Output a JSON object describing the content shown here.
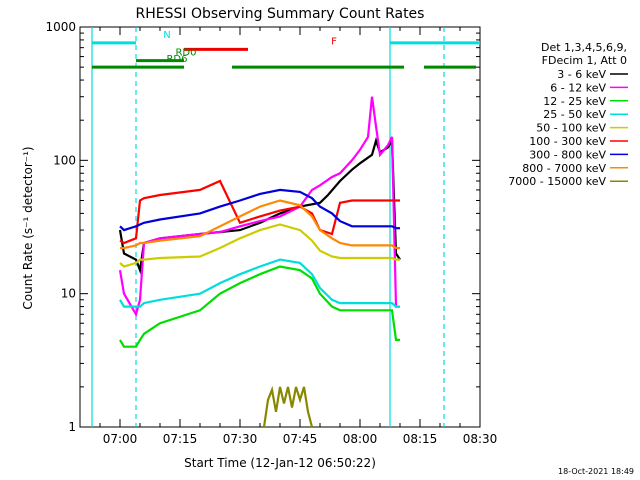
{
  "chart_data": {
    "type": "line",
    "title": "RHESSI Observing Summary Count Rates",
    "xlabel": "Start Time (12-Jan-12 06:50:22)",
    "ylabel": "Count Rate (s⁻¹ detector⁻¹)",
    "ylog": true,
    "ylim": [
      1,
      1000
    ],
    "xlim_min": [
      410,
      510
    ],
    "x_ticks": [
      {
        "label": "07:00",
        "min": 420
      },
      {
        "label": "07:15",
        "min": 435
      },
      {
        "label": "07:30",
        "min": 450
      },
      {
        "label": "07:45",
        "min": 465
      },
      {
        "label": "08:00",
        "min": 480
      },
      {
        "label": "08:15",
        "min": 495
      },
      {
        "label": "08:30",
        "min": 510
      }
    ],
    "y_ticks": [
      {
        "label": "1",
        "value": 1
      },
      {
        "label": "10",
        "value": 10
      },
      {
        "label": "100",
        "value": 100
      },
      {
        "label": "1000",
        "value": 1000
      }
    ],
    "legend_header": [
      "Det 1,3,4,5,6,9,",
      "FDecim 1, Att 0"
    ],
    "legend_position": "right",
    "series": [
      {
        "name": "3 - 6 keV",
        "color": "#000000",
        "x": [
          420,
          421,
          424,
          425,
          426,
          430,
          440,
          445,
          450,
          455,
          460,
          465,
          470,
          472,
          475,
          478,
          480,
          483,
          484,
          485,
          487,
          488,
          489,
          490
        ],
        "y": [
          30,
          20,
          18,
          15,
          24,
          26,
          28,
          29,
          30,
          34,
          40,
          45,
          48,
          55,
          70,
          85,
          95,
          110,
          140,
          115,
          125,
          140,
          20,
          18
        ]
      },
      {
        "name": "6 - 12 keV",
        "color": "#ff00ff",
        "x": [
          420,
          421,
          424,
          425,
          426,
          430,
          440,
          445,
          450,
          455,
          460,
          465,
          468,
          470,
          473,
          475,
          478,
          480,
          482,
          483,
          484,
          485,
          487,
          488,
          489,
          490
        ],
        "y": [
          15,
          10,
          7,
          9,
          24,
          26,
          28,
          29,
          32,
          35,
          38,
          45,
          60,
          65,
          75,
          80,
          100,
          120,
          150,
          300,
          180,
          110,
          130,
          150,
          8,
          8
        ]
      },
      {
        "name": "12 - 25 keV",
        "color": "#00dd00",
        "x": [
          420,
          421,
          424,
          425,
          426,
          430,
          440,
          445,
          450,
          455,
          460,
          465,
          468,
          470,
          473,
          475,
          478,
          480,
          488,
          489,
          490
        ],
        "y": [
          4.5,
          4,
          4,
          4.5,
          5,
          6,
          7.5,
          10,
          12,
          14,
          16,
          15,
          13,
          10,
          8,
          7.5,
          7.5,
          7.5,
          7.5,
          4.5,
          4.5
        ]
      },
      {
        "name": "25 - 50 keV",
        "color": "#00dddd",
        "x": [
          420,
          421,
          424,
          425,
          426,
          430,
          440,
          445,
          450,
          455,
          460,
          465,
          468,
          470,
          473,
          475,
          478,
          480,
          488,
          489,
          490
        ],
        "y": [
          9,
          8,
          8,
          8,
          8.5,
          9,
          10,
          12,
          14,
          16,
          18,
          17,
          14,
          11,
          9,
          8.5,
          8.5,
          8.5,
          8.5,
          8,
          8
        ]
      },
      {
        "name": "50 - 100 keV",
        "color": "#cccc00",
        "x": [
          420,
          421,
          424,
          425,
          426,
          430,
          440,
          445,
          450,
          455,
          460,
          465,
          468,
          470,
          473,
          475,
          478,
          480,
          488,
          489,
          490
        ],
        "y": [
          17,
          16,
          17,
          18,
          18,
          18.5,
          19,
          22,
          26,
          30,
          33,
          30,
          25,
          21,
          19,
          18.5,
          18.5,
          18.5,
          18.5,
          18,
          18
        ]
      },
      {
        "name": "100 - 300 keV",
        "color": "#ff0000",
        "x": [
          420,
          421,
          424,
          425,
          426,
          430,
          440,
          445,
          450,
          455,
          460,
          465,
          468,
          470,
          473,
          475,
          478,
          480,
          488,
          489,
          490
        ],
        "y": [
          25,
          24,
          26,
          50,
          52,
          55,
          60,
          70,
          34,
          38,
          42,
          45,
          40,
          30,
          28,
          48,
          50,
          50,
          50,
          50,
          50
        ]
      },
      {
        "name": "300 - 800 keV",
        "color": "#0000dd",
        "x": [
          420,
          421,
          424,
          425,
          426,
          430,
          440,
          445,
          450,
          455,
          460,
          465,
          468,
          470,
          473,
          475,
          478,
          480,
          488,
          489,
          490
        ],
        "y": [
          32,
          30,
          32,
          33,
          34,
          36,
          40,
          45,
          50,
          56,
          60,
          58,
          52,
          45,
          40,
          35,
          32,
          32,
          32,
          31,
          31
        ]
      },
      {
        "name": "800 - 7000 keV",
        "color": "#ff8800",
        "x": [
          420,
          421,
          424,
          425,
          426,
          430,
          440,
          445,
          450,
          455,
          460,
          465,
          468,
          470,
          473,
          475,
          478,
          480,
          488,
          489,
          490
        ],
        "y": [
          22,
          22,
          23,
          24,
          24,
          25,
          27,
          32,
          38,
          45,
          50,
          46,
          38,
          30,
          26,
          24,
          23,
          23,
          23,
          22,
          22
        ]
      },
      {
        "name": "7000 - 15000 keV",
        "color": "#888800",
        "x": [
          456,
          457,
          458,
          459,
          460,
          461,
          462,
          463,
          464,
          465,
          466,
          467,
          468
        ],
        "y": [
          1,
          1.6,
          1.9,
          1.3,
          2,
          1.5,
          2,
          1.4,
          2,
          1.6,
          2,
          1.3,
          1
        ]
      }
    ],
    "annotations": {
      "vertical_lines": [
        {
          "x": 413.0,
          "color": "#00dddd",
          "style": "solid"
        },
        {
          "x": 424.0,
          "color": "#00dddd",
          "style": "dashed"
        },
        {
          "x": 487.5,
          "color": "#00dddd",
          "style": "solid"
        },
        {
          "x": 501.0,
          "color": "#00dddd",
          "style": "dashed"
        }
      ],
      "bars": [
        {
          "label": "N",
          "color": "#00dddd",
          "segments": [
            [
              413,
              424
            ],
            [
              487.5,
              511
            ]
          ],
          "y": 760
        },
        {
          "label": "F",
          "color": "#ee0000",
          "segments": [
            [
              436,
              452
            ]
          ],
          "y": 680
        },
        {
          "label": "RD0",
          "color": "#008800",
          "segments": [
            [
              424,
              436
            ]
          ],
          "y": 560
        },
        {
          "label": "RD6",
          "color": "#008800",
          "segments": [
            [
              413,
              436
            ],
            [
              448,
              491
            ],
            [
              496,
              509
            ]
          ],
          "y": 500
        }
      ]
    },
    "grid": false
  },
  "footer": {
    "timestamp": "18-Oct-2021 18:49"
  }
}
